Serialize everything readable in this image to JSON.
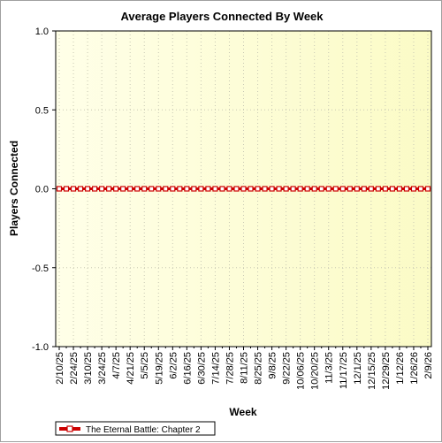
{
  "chart_data": {
    "type": "line",
    "title": "Average Players Connected By Week",
    "xlabel": "Week",
    "ylabel": "Players Connected",
    "ylim": [
      -1.0,
      1.0
    ],
    "yticks": [
      "1.0",
      "0.5",
      "0.0",
      "-0.5",
      "-1.0"
    ],
    "yticks_values": [
      1.0,
      0.5,
      0.0,
      -0.5,
      -1.0
    ],
    "grid": true,
    "legend_position": "bottom-left",
    "x": [
      "2/10/25",
      "2/17/25",
      "2/24/25",
      "3/3/25",
      "3/10/25",
      "3/17/25",
      "3/24/25",
      "3/31/25",
      "4/7/25",
      "4/14/25",
      "4/21/25",
      "4/28/25",
      "5/5/25",
      "5/12/25",
      "5/19/25",
      "5/26/25",
      "6/2/25",
      "6/9/25",
      "6/16/25",
      "6/23/25",
      "6/30/25",
      "7/7/25",
      "7/14/25",
      "7/21/25",
      "7/28/25",
      "8/4/25",
      "8/11/25",
      "8/18/25",
      "8/25/25",
      "9/1/25",
      "9/8/25",
      "9/15/25",
      "9/22/25",
      "9/29/25",
      "10/06/25",
      "10/13/25",
      "10/20/25",
      "10/27/25",
      "11/3/25",
      "11/10/25",
      "11/17/25",
      "11/24/25",
      "12/1/25",
      "12/8/25",
      "12/15/25",
      "12/22/25",
      "12/29/25",
      "1/5/26",
      "1/12/26",
      "1/19/26",
      "1/26/26",
      "2/2/26",
      "2/9/26"
    ],
    "x_label_every": 2,
    "series": [
      {
        "name": "The Eternal Battle: Chapter 2",
        "color": "#cc0000",
        "values": [
          0,
          0,
          0,
          0,
          0,
          0,
          0,
          0,
          0,
          0,
          0,
          0,
          0,
          0,
          0,
          0,
          0,
          0,
          0,
          0,
          0,
          0,
          0,
          0,
          0,
          0,
          0,
          0,
          0,
          0,
          0,
          0,
          0,
          0,
          0,
          0,
          0,
          0,
          0,
          0,
          0,
          0,
          0,
          0,
          0,
          0,
          0,
          0,
          0,
          0,
          0,
          0,
          0
        ]
      }
    ],
    "colors": {
      "plot_bg_left": "#ffffe8",
      "plot_bg_right": "#fbfbc6",
      "grid": "#c8c8b4",
      "line": "#cc0000",
      "marker_fill": "#ffffff"
    }
  }
}
